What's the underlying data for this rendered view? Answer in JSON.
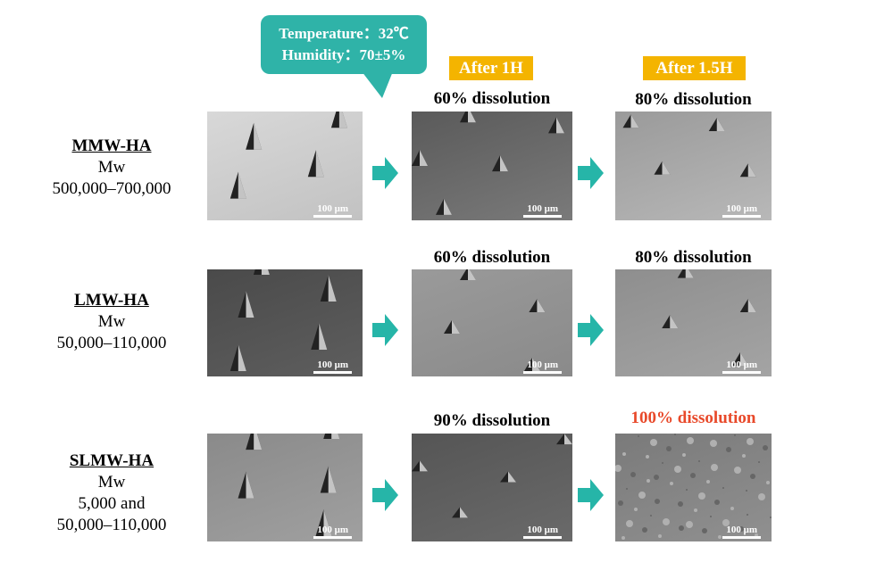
{
  "callout": {
    "lines": [
      "Temperature：32℃",
      "Humidity：70±5%"
    ]
  },
  "headers": [
    "After 1H",
    "After 1.5H"
  ],
  "rows": [
    {
      "name": "MMW-HA",
      "mw_label": "Mw",
      "mw": [
        "500,000–700,000"
      ],
      "images": [
        {
          "scale_bar": "100 μm"
        },
        {
          "caption": "60% dissolution",
          "scale_bar": "100 μm"
        },
        {
          "caption": "80% dissolution",
          "scale_bar": "100 μm"
        }
      ]
    },
    {
      "name": "LMW-HA",
      "mw_label": "Mw",
      "mw": [
        "50,000–110,000"
      ],
      "images": [
        {
          "scale_bar": "100 μm"
        },
        {
          "caption": "60% dissolution",
          "scale_bar": "100 μm"
        },
        {
          "caption": "80% dissolution",
          "scale_bar": "100 μm"
        }
      ]
    },
    {
      "name": "SLMW-HA",
      "mw_label": "Mw",
      "mw": [
        "5,000 and",
        "50,000–110,000"
      ],
      "images": [
        {
          "scale_bar": "100 μm"
        },
        {
          "caption": "90% dissolution",
          "scale_bar": "100 μm"
        },
        {
          "caption": "100% dissolution",
          "scale_bar": "100 μm"
        }
      ]
    }
  ]
}
